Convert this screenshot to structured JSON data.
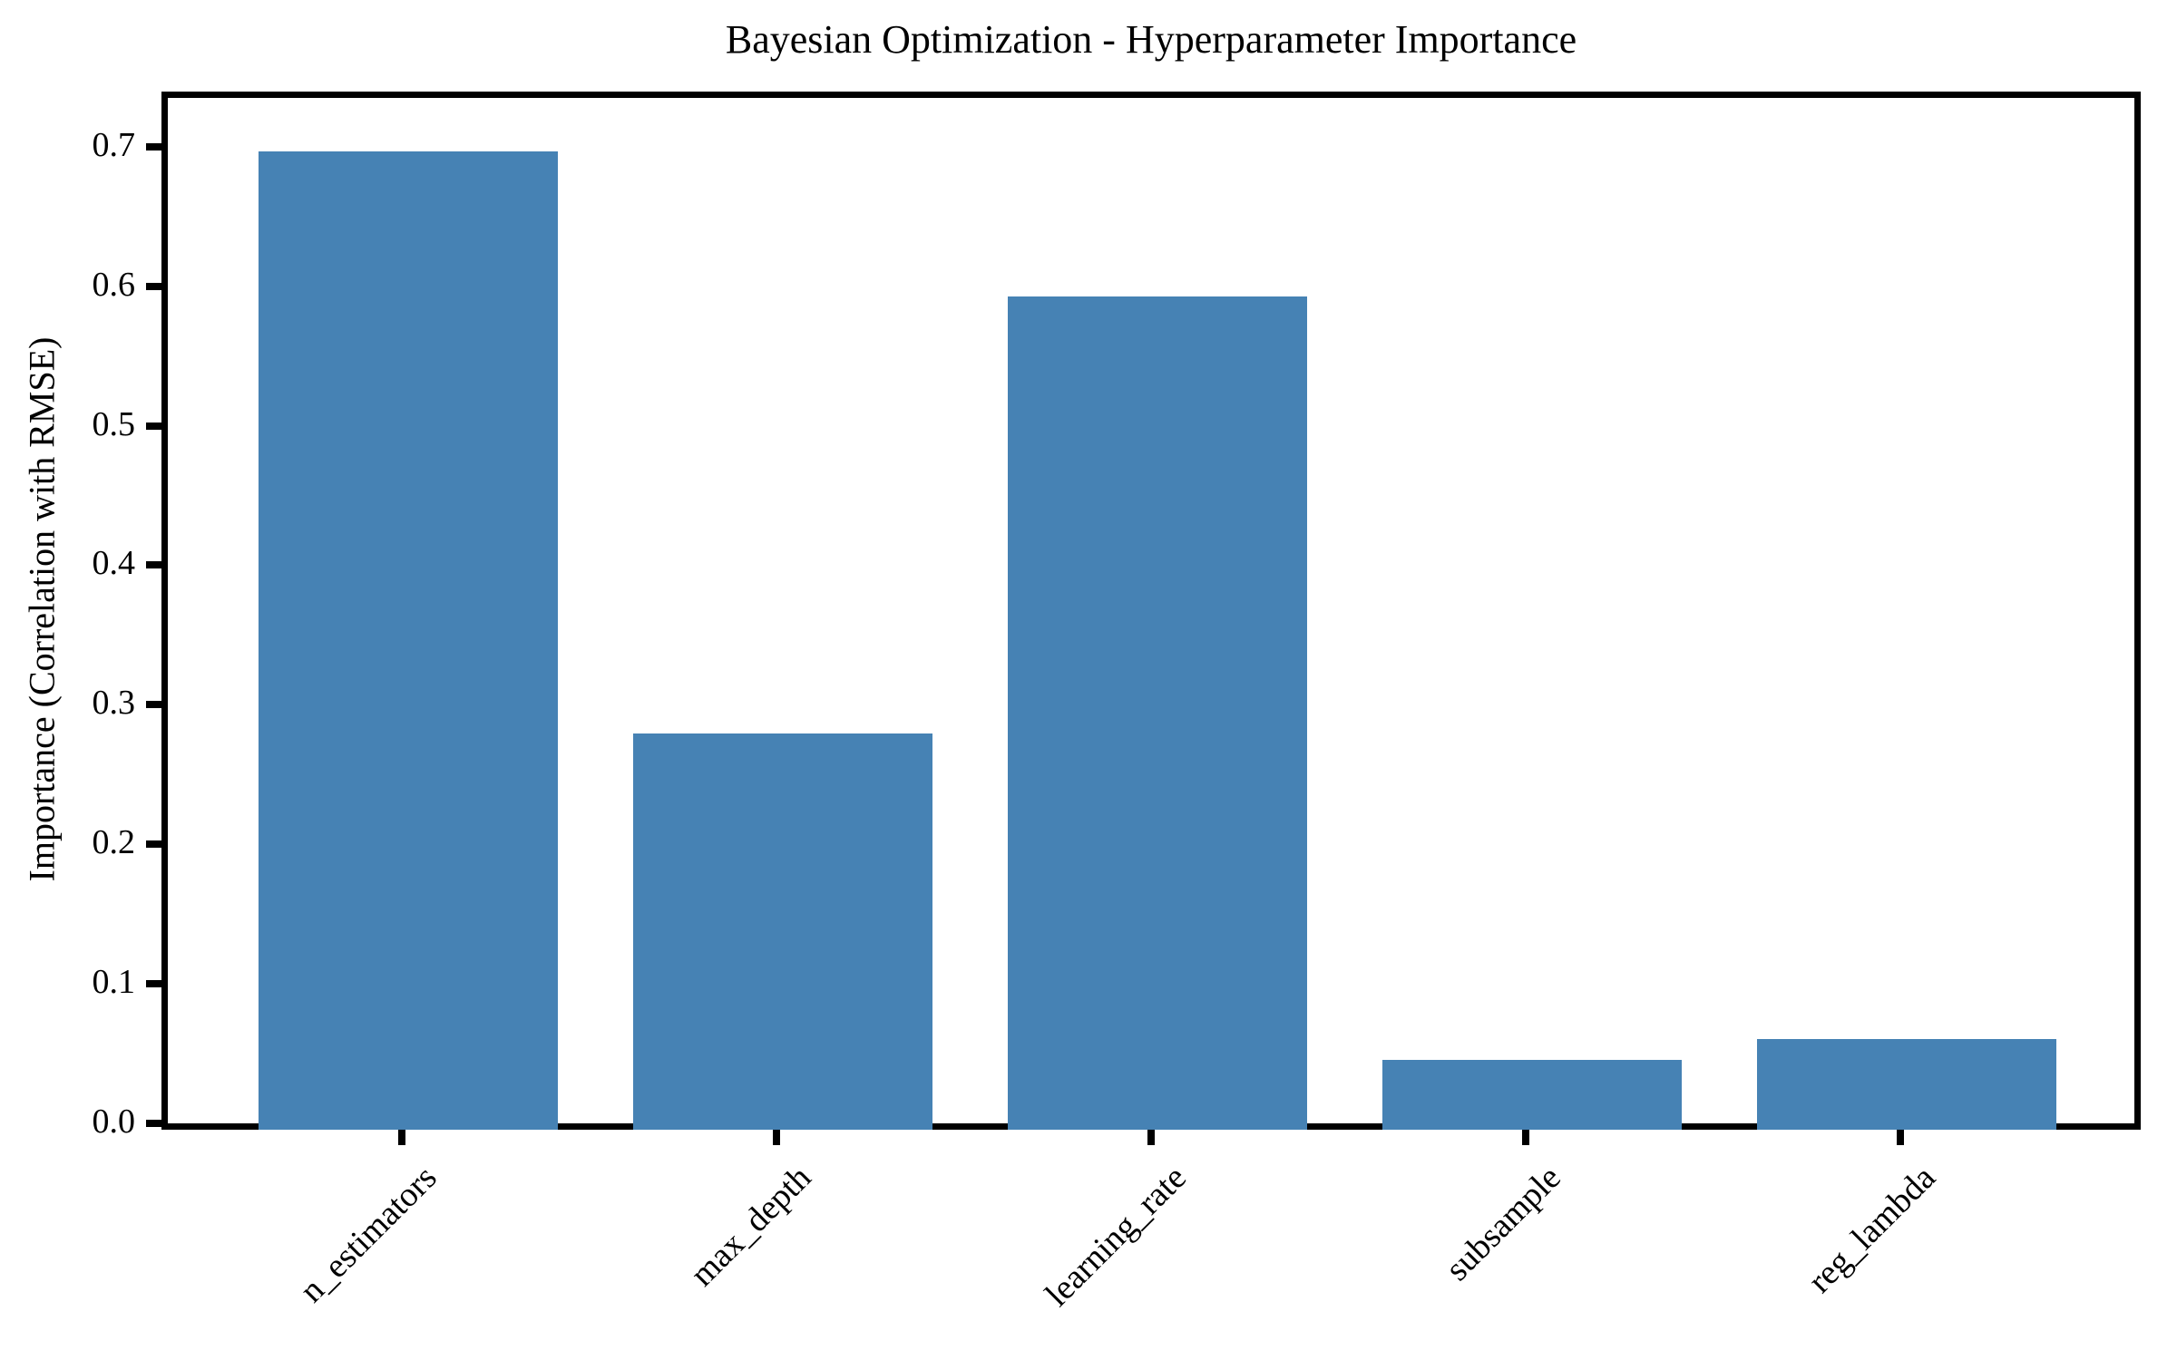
{
  "figure": {
    "title": "Bayesian Optimization - Hyperparameter Importance",
    "ylabel": "Importance (Correlation with RMSE)"
  },
  "chart_data": {
    "type": "bar",
    "title": "Bayesian Optimization - Hyperparameter Importance",
    "xlabel": "",
    "ylabel": "Importance (Correlation with RMSE)",
    "categories": [
      "n_estimators",
      "max_depth",
      "learning_rate",
      "subsample",
      "reg_lambda"
    ],
    "values": [
      0.701,
      0.284,
      0.597,
      0.05,
      0.065
    ],
    "y_ticks": [
      0.0,
      0.1,
      0.2,
      0.3,
      0.4,
      0.5,
      0.6,
      0.7
    ],
    "ylim": [
      0,
      0.735
    ],
    "bar_color": "#4682B4",
    "axis_color": "#000000",
    "background_color": "#FFFFFF",
    "grid": false,
    "legend": null,
    "x_tick_label_rotation_deg": 45
  }
}
